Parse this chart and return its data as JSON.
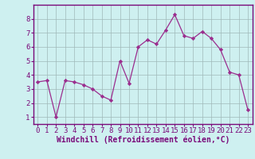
{
  "x": [
    0,
    1,
    2,
    3,
    4,
    5,
    6,
    7,
    8,
    9,
    10,
    11,
    12,
    13,
    14,
    15,
    16,
    17,
    18,
    19,
    20,
    21,
    22,
    23
  ],
  "y": [
    3.5,
    3.6,
    1.0,
    3.6,
    3.5,
    3.3,
    3.0,
    2.5,
    2.2,
    5.0,
    3.4,
    6.0,
    6.5,
    6.2,
    7.2,
    8.3,
    6.8,
    6.6,
    7.1,
    6.6,
    5.8,
    4.2,
    4.0,
    1.5
  ],
  "line_color": "#9b2d8e",
  "marker": "D",
  "marker_size": 2.2,
  "bg_color": "#cef0f0",
  "grid_color": "#a0b8b8",
  "xlabel": "Windchill (Refroidissement éolien,°C)",
  "xlim": [
    -0.5,
    23.5
  ],
  "ylim": [
    0.5,
    9.0
  ],
  "xticks": [
    0,
    1,
    2,
    3,
    4,
    5,
    6,
    7,
    8,
    9,
    10,
    11,
    12,
    13,
    14,
    15,
    16,
    17,
    18,
    19,
    20,
    21,
    22,
    23
  ],
  "yticks": [
    1,
    2,
    3,
    4,
    5,
    6,
    7,
    8
  ],
  "xlabel_color": "#7a0a7a",
  "tick_color": "#7a0a7a",
  "spine_color": "#7a0a7a",
  "xlabel_fontsize": 7.0,
  "tick_fontsize": 6.5
}
